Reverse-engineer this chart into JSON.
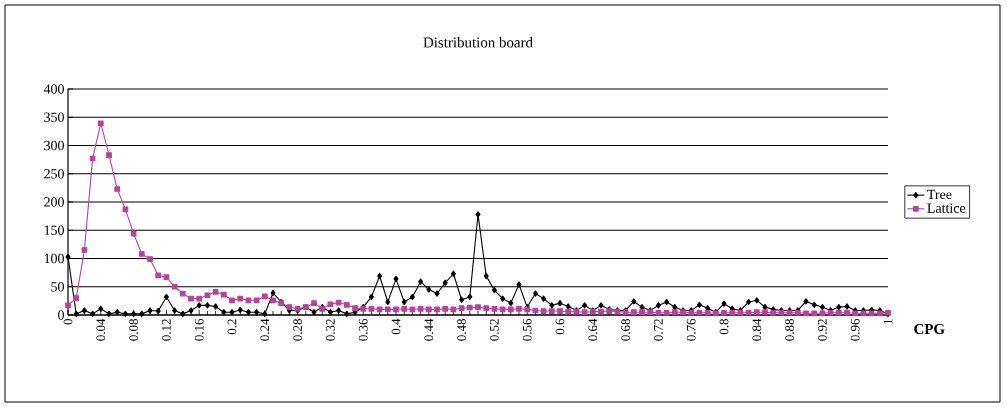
{
  "chart_data": {
    "type": "line",
    "title": "Distribution board",
    "xlabel": "CPG",
    "x": [
      0,
      0.01,
      0.02,
      0.03,
      0.04,
      0.05,
      0.06,
      0.07,
      0.08,
      0.09,
      0.1,
      0.11,
      0.12,
      0.13,
      0.14,
      0.15,
      0.16,
      0.17,
      0.18,
      0.19,
      0.2,
      0.21,
      0.22,
      0.23,
      0.24,
      0.25,
      0.26,
      0.27,
      0.28,
      0.29,
      0.3,
      0.31,
      0.32,
      0.33,
      0.34,
      0.35,
      0.36,
      0.37,
      0.38,
      0.39,
      0.4,
      0.41,
      0.42,
      0.43,
      0.44,
      0.45,
      0.46,
      0.47,
      0.48,
      0.49,
      0.5,
      0.51,
      0.52,
      0.53,
      0.54,
      0.55,
      0.56,
      0.57,
      0.58,
      0.59,
      0.6,
      0.61,
      0.62,
      0.63,
      0.64,
      0.65,
      0.66,
      0.67,
      0.68,
      0.69,
      0.7,
      0.71,
      0.72,
      0.73,
      0.74,
      0.75,
      0.76,
      0.77,
      0.78,
      0.79,
      0.8,
      0.81,
      0.82,
      0.83,
      0.84,
      0.85,
      0.86,
      0.87,
      0.88,
      0.89,
      0.9,
      0.91,
      0.92,
      0.93,
      0.94,
      0.95,
      0.96,
      0.97,
      0.98,
      0.99,
      1
    ],
    "series": [
      {
        "name": "Tree",
        "color": "#000000",
        "marker": "diamond",
        "values": [
          103,
          2,
          8,
          2,
          11,
          2,
          5,
          2,
          2,
          2,
          8,
          7,
          32,
          8,
          2,
          8,
          17,
          17,
          15,
          5,
          5,
          9,
          5,
          5,
          2,
          39,
          23,
          8,
          8,
          14,
          5,
          14,
          5,
          8,
          2,
          5,
          14,
          32,
          69,
          23,
          64,
          23,
          32,
          59,
          45,
          38,
          57,
          73,
          27,
          32,
          178,
          69,
          44,
          29,
          21,
          54,
          14,
          38,
          29,
          17,
          21,
          15,
          8,
          17,
          8,
          17,
          10,
          8,
          8,
          24,
          14,
          8,
          17,
          23,
          14,
          8,
          8,
          18,
          12,
          5,
          20,
          11,
          8,
          23,
          26,
          14,
          10,
          8,
          8,
          8,
          24,
          18,
          14,
          8,
          14,
          15,
          8,
          8,
          9,
          8,
          2
        ]
      },
      {
        "name": "Lattice",
        "color": "#b8409f",
        "marker": "square",
        "values": [
          17,
          30,
          115,
          277,
          339,
          283,
          223,
          187,
          144,
          108,
          99,
          70,
          67,
          50,
          38,
          29,
          29,
          35,
          41,
          36,
          26,
          29,
          26,
          26,
          33,
          26,
          21,
          14,
          11,
          14,
          21,
          11,
          19,
          22,
          18,
          12,
          11,
          11,
          10,
          10,
          10,
          11,
          10,
          11,
          10,
          10,
          11,
          10,
          12,
          13,
          14,
          12,
          11,
          10,
          10,
          11,
          10,
          8,
          7,
          7,
          7,
          6,
          6,
          5,
          6,
          6,
          7,
          6,
          5,
          5,
          5,
          5,
          4,
          4,
          5,
          5,
          4,
          4,
          4,
          3,
          4,
          4,
          4,
          4,
          5,
          5,
          4,
          4,
          4,
          4,
          3,
          3,
          3,
          4,
          4,
          4,
          3,
          3,
          3,
          3,
          4
        ]
      }
    ],
    "xlim": [
      0,
      1
    ],
    "xticks": [
      0,
      0.04,
      0.08,
      0.12,
      0.16,
      0.2,
      0.24,
      0.28,
      0.32,
      0.36,
      0.4,
      0.44,
      0.48,
      0.52,
      0.56,
      0.6,
      0.64,
      0.68,
      0.72,
      0.76,
      0.8,
      0.84,
      0.88,
      0.92,
      0.96,
      1
    ],
    "ylim": [
      0,
      400
    ],
    "yticks": [
      0,
      50,
      100,
      150,
      200,
      250,
      300,
      350,
      400
    ],
    "grid": "y",
    "legend": "right",
    "line_style": "solid"
  }
}
